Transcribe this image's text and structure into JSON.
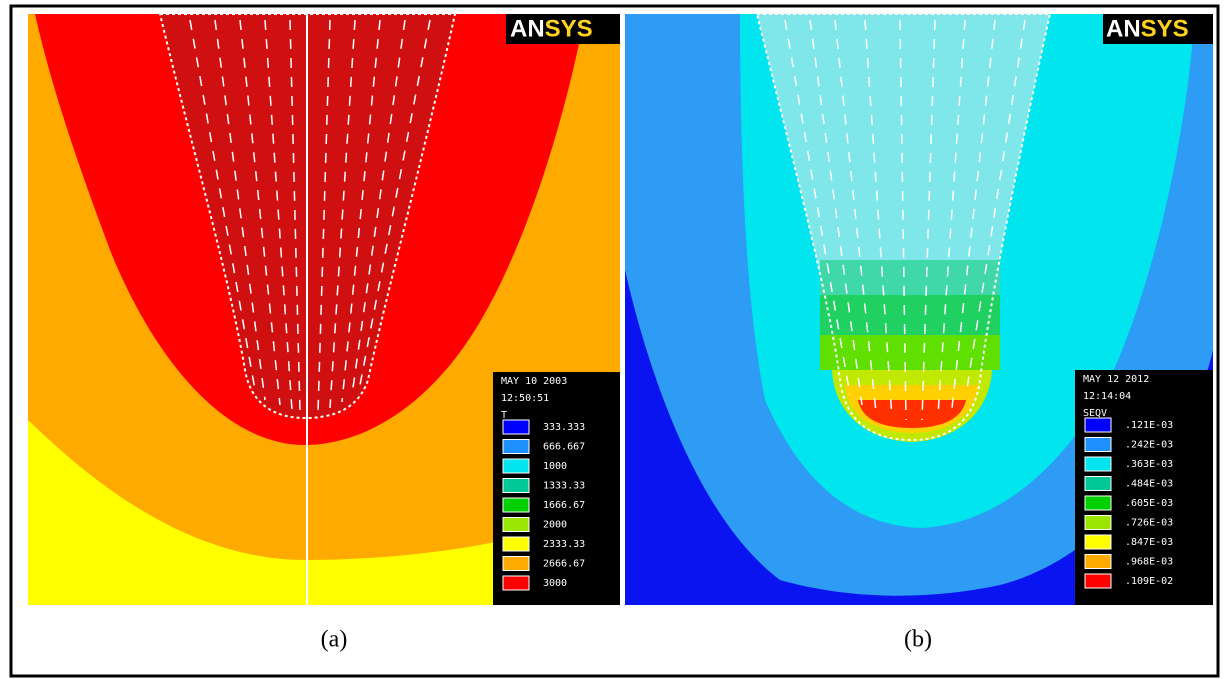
{
  "panels": [
    {
      "logo": "ANSYS",
      "caption": "(a)",
      "legend": {
        "header": [
          "MAY 10 2003",
          "12:50:51",
          "T"
        ],
        "labels": [
          "333.333",
          "666.667",
          "1000",
          "1333.33",
          "1666.67",
          "2000",
          "2333.33",
          "2666.67",
          "3000"
        ],
        "colors": [
          "#0000ff",
          "#1e90ff",
          "#00e5ee",
          "#00c896",
          "#00d000",
          "#9ae600",
          "#ffff00",
          "#ffaa00",
          "#ff0000"
        ]
      }
    },
    {
      "logo": "ANSYS",
      "caption": "(b)",
      "legend": {
        "header": [
          "MAY 12 2012",
          "12:14:04",
          "SEQV"
        ],
        "labels": [
          ".121E-03",
          ".242E-03",
          ".363E-03",
          ".484E-03",
          ".605E-03",
          ".726E-03",
          ".847E-03",
          ".968E-03",
          ".109E-02"
        ],
        "colors": [
          "#0000ff",
          "#1e90ff",
          "#00e5ee",
          "#00c896",
          "#00d000",
          "#9ae600",
          "#ffff00",
          "#ffaa00",
          "#ff0000"
        ]
      }
    }
  ]
}
